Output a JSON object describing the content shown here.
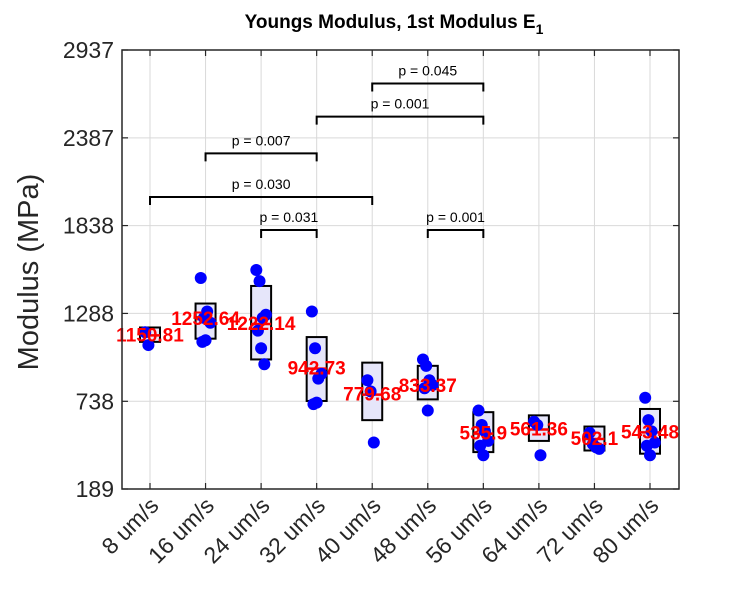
{
  "chart_data": {
    "type": "box",
    "title": "Youngs Modulus, 1st Modulus E",
    "title_subscript": "1",
    "xlabel": "",
    "ylabel": "Modulus (MPa)",
    "ylim": [
      189,
      2937
    ],
    "yticks": [
      "189",
      "738",
      "1288",
      "1838",
      "2387",
      "2937"
    ],
    "grid": true,
    "categories": [
      "8 um/s",
      "16 um/s",
      "24 um/s",
      "32 um/s",
      "40 um/s",
      "48 um/s",
      "56 um/s",
      "64 um/s",
      "72 um/s",
      "80 um/s"
    ],
    "mean_labels": [
      "1150.81",
      "1252.64",
      "1222.14",
      "942.73",
      "779.68",
      "833.37",
      "535.9",
      "561.36",
      "502.1",
      "543.48"
    ],
    "means": [
      1150.81,
      1252.64,
      1222.14,
      942.73,
      779.68,
      833.37,
      535.9,
      561.36,
      502.1,
      543.48
    ],
    "boxes": [
      {
        "q1": 1110,
        "q3": 1200,
        "median": 1150
      },
      {
        "q1": 1130,
        "q3": 1350,
        "median": 1240
      },
      {
        "q1": 1000,
        "q3": 1460,
        "median": 1250
      },
      {
        "q1": 740,
        "q3": 1140,
        "median": 950
      },
      {
        "q1": 620,
        "q3": 980,
        "median": 770
      },
      {
        "q1": 750,
        "q3": 960,
        "median": 835
      },
      {
        "q1": 420,
        "q3": 670,
        "median": 540
      },
      {
        "q1": 490,
        "q3": 650,
        "median": 560
      },
      {
        "q1": 430,
        "q3": 580,
        "median": 500
      },
      {
        "q1": 410,
        "q3": 690,
        "median": 540
      }
    ],
    "points": [
      [
        1170,
        1090
      ],
      [
        1510,
        1260,
        1300,
        1230,
        1110,
        1120
      ],
      [
        1560,
        1490,
        1260,
        1280,
        1180,
        1070,
        970
      ],
      [
        1300,
        1070,
        880,
        910,
        720,
        730
      ],
      [
        870,
        800,
        480
      ],
      [
        1000,
        960,
        870,
        840,
        820,
        680
      ],
      [
        680,
        590,
        550,
        490,
        460,
        400
      ],
      [
        610,
        590,
        400
      ],
      [
        540,
        470,
        450,
        440
      ],
      [
        760,
        620,
        550,
        480,
        460,
        400
      ]
    ],
    "significance": [
      {
        "from": 1,
        "to": 3,
        "label": "p = 0.007",
        "y": 2290
      },
      {
        "from": 0,
        "to": 4,
        "label": "p = 0.030",
        "y": 2017
      },
      {
        "from": 2,
        "to": 3,
        "label": "p = 0.031",
        "y": 1810
      },
      {
        "from": 3,
        "to": 6,
        "label": "p = 0.001",
        "y": 2520
      },
      {
        "from": 4,
        "to": 6,
        "label": "p = 0.045",
        "y": 2727
      },
      {
        "from": 5,
        "to": 6,
        "label": "p = 0.001",
        "y": 1810
      }
    ],
    "colors": {
      "point": "#0000ff",
      "mean": "#ff0000",
      "box_fill": "#e6e6fa",
      "box_edge": "#000000",
      "grid": "#d9d9d9",
      "axis": "#262626"
    }
  }
}
